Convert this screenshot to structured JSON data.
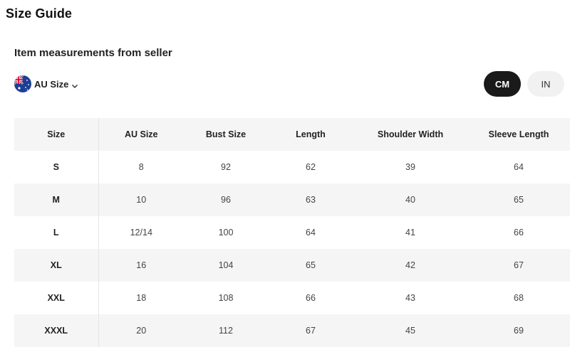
{
  "page": {
    "title": "Size Guide"
  },
  "section": {
    "subtitle": "Item measurements from seller"
  },
  "size_selector": {
    "label": "AU Size",
    "icon": "australia-flag-icon"
  },
  "units": {
    "cm": "CM",
    "in": "IN",
    "selected": "CM"
  },
  "table": {
    "headers": [
      "Size",
      "AU Size",
      "Bust Size",
      "Length",
      "Shoulder Width",
      "Sleeve Length"
    ],
    "rows": [
      [
        "S",
        "8",
        "92",
        "62",
        "39",
        "64"
      ],
      [
        "M",
        "10",
        "96",
        "63",
        "40",
        "65"
      ],
      [
        "L",
        "12/14",
        "100",
        "64",
        "41",
        "66"
      ],
      [
        "XL",
        "16",
        "104",
        "65",
        "42",
        "67"
      ],
      [
        "XXL",
        "18",
        "108",
        "66",
        "43",
        "68"
      ],
      [
        "XXXL",
        "20",
        "112",
        "67",
        "45",
        "69"
      ]
    ]
  },
  "colors": {
    "active_unit_bg": "#1a1a1a",
    "inactive_unit_bg": "#f1f1f1",
    "row_shade": "#f5f5f5"
  }
}
